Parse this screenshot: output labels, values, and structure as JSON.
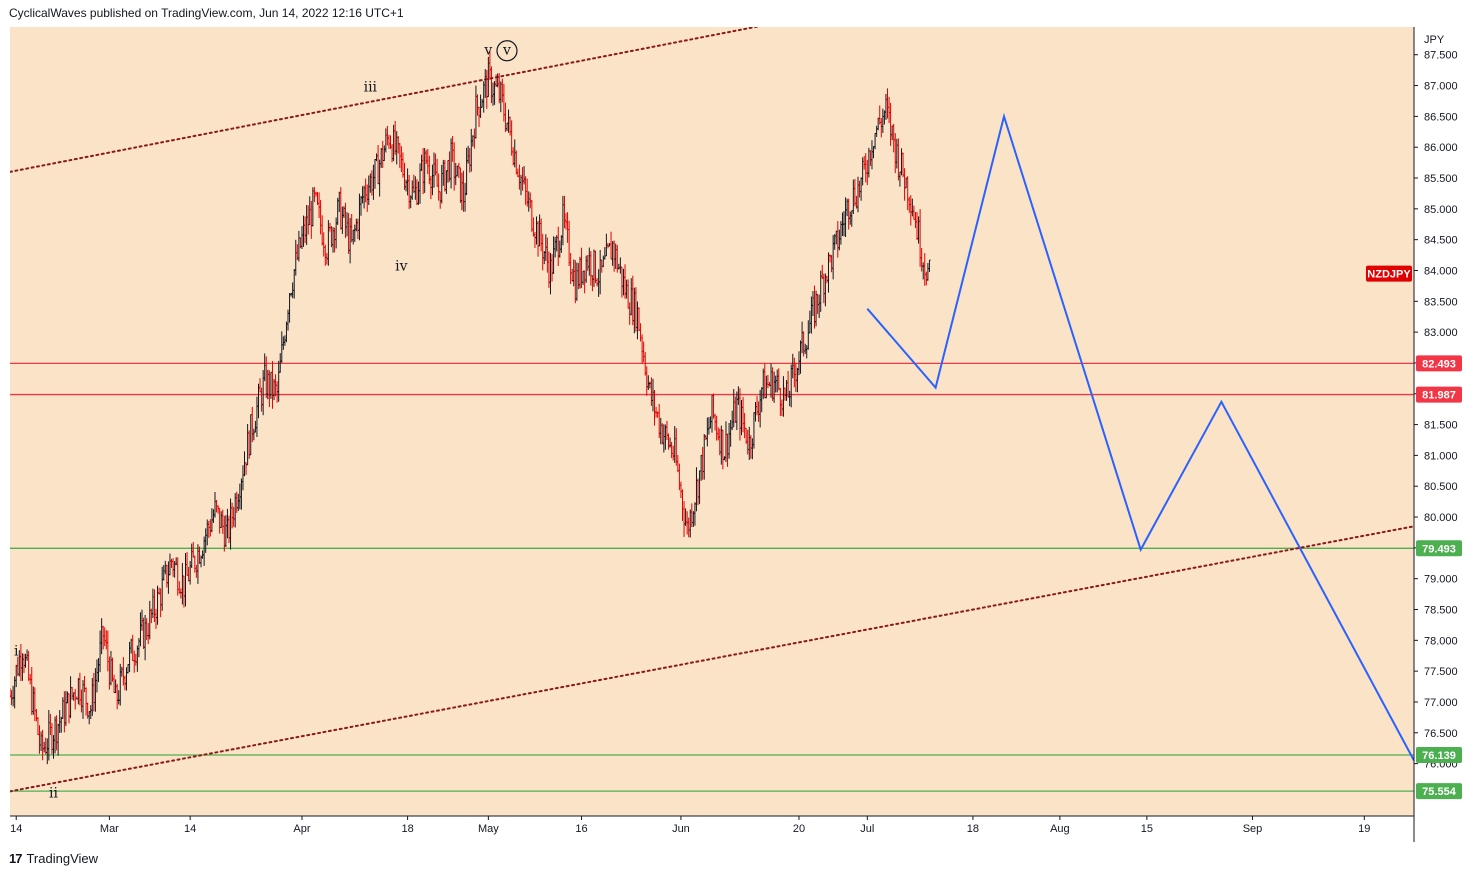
{
  "header": {
    "publisher": "CyclicalWaves published on TradingView.com, Jun 14, 2022 12:16 UTC+1"
  },
  "footer": {
    "logo": "17",
    "brand": "TradingView"
  },
  "colors": {
    "plot_bg": "#fbe3c8",
    "up_candle": "#131722",
    "down_candle": "#e00000",
    "resistance": "#f23645",
    "support": "#4caf50",
    "channel": "#8b1a1a",
    "projection": "#2962ff",
    "symbol_badge": "#e00000"
  },
  "chart_data": {
    "type": "candlestick",
    "symbol": "NZDJPY",
    "currency": "JPY",
    "y_range": [
      75.15,
      87.95
    ],
    "y_ticks": [
      76.0,
      76.5,
      77.0,
      77.5,
      78.0,
      78.5,
      79.0,
      79.5,
      80.0,
      80.5,
      81.0,
      81.5,
      82.0,
      82.5,
      83.0,
      83.5,
      84.0,
      84.5,
      85.0,
      85.5,
      86.0,
      86.5,
      87.0,
      87.5
    ],
    "x_range": [
      "2022-02-13",
      "2022-09-27"
    ],
    "x_ticks": [
      {
        "label": "14",
        "date": "2022-02-14"
      },
      {
        "label": "Mar",
        "date": "2022-03-01"
      },
      {
        "label": "14",
        "date": "2022-03-14"
      },
      {
        "label": "Apr",
        "date": "2022-04-01"
      },
      {
        "label": "18",
        "date": "2022-04-18"
      },
      {
        "label": "May",
        "date": "2022-05-01"
      },
      {
        "label": "16",
        "date": "2022-05-16"
      },
      {
        "label": "Jun",
        "date": "2022-06-01"
      },
      {
        "label": "20",
        "date": "2022-06-20"
      },
      {
        "label": "Jul",
        "date": "2022-07-01"
      },
      {
        "label": "18",
        "date": "2022-07-18"
      },
      {
        "label": "Aug",
        "date": "2022-08-01"
      },
      {
        "label": "15",
        "date": "2022-08-15"
      },
      {
        "label": "Sep",
        "date": "2022-09-01"
      },
      {
        "label": "19",
        "date": "2022-09-19"
      }
    ],
    "price_path": [
      [
        "2022-02-13",
        77.1
      ],
      [
        "2022-02-15",
        77.9
      ],
      [
        "2022-02-17",
        76.8
      ],
      [
        "2022-02-18",
        76.2
      ],
      [
        "2022-02-21",
        76.7
      ],
      [
        "2022-02-24",
        77.3
      ],
      [
        "2022-02-26",
        76.9
      ],
      [
        "2022-02-28",
        78.1
      ],
      [
        "2022-03-02",
        77.0
      ],
      [
        "2022-03-04",
        77.7
      ],
      [
        "2022-03-07",
        78.2
      ],
      [
        "2022-03-09",
        78.7
      ],
      [
        "2022-03-11",
        79.3
      ],
      [
        "2022-03-13",
        78.9
      ],
      [
        "2022-03-16",
        79.6
      ],
      [
        "2022-03-18",
        80.1
      ],
      [
        "2022-03-20",
        79.7
      ],
      [
        "2022-03-22",
        80.6
      ],
      [
        "2022-03-24",
        81.5
      ],
      [
        "2022-03-26",
        82.2
      ],
      [
        "2022-03-28",
        82.0
      ],
      [
        "2022-03-30",
        83.7
      ],
      [
        "2022-04-01",
        84.5
      ],
      [
        "2022-04-03",
        85.1
      ],
      [
        "2022-04-05",
        84.4
      ],
      [
        "2022-04-07",
        85.0
      ],
      [
        "2022-04-09",
        84.4
      ],
      [
        "2022-04-11",
        85.3
      ],
      [
        "2022-04-13",
        85.6
      ],
      [
        "2022-04-15",
        86.2
      ],
      [
        "2022-04-17",
        85.7
      ],
      [
        "2022-04-19",
        85.2
      ],
      [
        "2022-04-21",
        85.8
      ],
      [
        "2022-04-23",
        85.3
      ],
      [
        "2022-04-25",
        85.8
      ],
      [
        "2022-04-27",
        85.2
      ],
      [
        "2022-04-29",
        86.6
      ],
      [
        "2022-05-01",
        87.1
      ],
      [
        "2022-05-03",
        86.8
      ],
      [
        "2022-05-05",
        86.0
      ],
      [
        "2022-05-07",
        85.2
      ],
      [
        "2022-05-09",
        84.6
      ],
      [
        "2022-05-11",
        84.0
      ],
      [
        "2022-05-13",
        84.8
      ],
      [
        "2022-05-15",
        83.8
      ],
      [
        "2022-05-17",
        84.2
      ],
      [
        "2022-05-19",
        83.9
      ],
      [
        "2022-05-21",
        84.4
      ],
      [
        "2022-05-23",
        83.7
      ],
      [
        "2022-05-25",
        83.3
      ],
      [
        "2022-05-27",
        82.0
      ],
      [
        "2022-05-29",
        81.4
      ],
      [
        "2022-05-31",
        81.0
      ],
      [
        "2022-06-02",
        79.8
      ],
      [
        "2022-06-04",
        80.7
      ],
      [
        "2022-06-06",
        81.7
      ],
      [
        "2022-06-08",
        81.1
      ],
      [
        "2022-06-10",
        81.8
      ],
      [
        "2022-06-12",
        81.2
      ],
      [
        "2022-06-14",
        82.1
      ],
      [
        "2022-06-16",
        82.2
      ],
      [
        "2022-06-18",
        81.9
      ],
      [
        "2022-06-20",
        82.6
      ],
      [
        "2022-06-22",
        83.2
      ],
      [
        "2022-06-24",
        83.9
      ],
      [
        "2022-06-26",
        84.4
      ],
      [
        "2022-06-28",
        85.1
      ],
      [
        "2022-06-30",
        85.4
      ],
      [
        "2022-07-02",
        86.2
      ],
      [
        "2022-07-04",
        86.6
      ],
      [
        "2022-07-06",
        85.8
      ],
      [
        "2022-07-08",
        85.2
      ],
      [
        "2022-07-10",
        84.2
      ],
      [
        "2022-07-11",
        83.9
      ]
    ],
    "horizontal_levels": [
      {
        "value": 82.493,
        "label": "82.493",
        "kind": "resistance"
      },
      {
        "value": 81.987,
        "label": "81.987",
        "kind": "resistance"
      },
      {
        "value": 79.493,
        "label": "79.493",
        "kind": "support"
      },
      {
        "value": 76.139,
        "label": "76.139",
        "kind": "support"
      },
      {
        "value": 75.554,
        "label": "75.554",
        "kind": "support"
      }
    ],
    "channel_lines": [
      {
        "from": [
          "2022-02-13",
          85.6
        ],
        "to": [
          "2022-06-18",
          88.05
        ],
        "style": "dotted"
      },
      {
        "from": [
          "2022-02-13",
          75.55
        ],
        "to": [
          "2022-09-27",
          79.85
        ],
        "style": "dotted"
      }
    ],
    "projection_path": [
      [
        "2022-07-01",
        83.38
      ],
      [
        "2022-07-12",
        82.1
      ],
      [
        "2022-07-23",
        86.5
      ],
      [
        "2022-08-14",
        79.47
      ],
      [
        "2022-08-27",
        81.87
      ],
      [
        "2022-09-27",
        76.05
      ]
    ],
    "wave_labels": [
      {
        "text": "i",
        "date": "2022-02-14",
        "price": 77.75,
        "circled": false
      },
      {
        "text": "ii",
        "date": "2022-02-20",
        "price": 75.45,
        "circled": false
      },
      {
        "text": "iii",
        "date": "2022-04-12",
        "price": 86.9,
        "circled": false
      },
      {
        "text": "iv",
        "date": "2022-04-17",
        "price": 84.0,
        "circled": false
      },
      {
        "text": "v",
        "date": "2022-05-01",
        "price": 87.5,
        "circled": false
      },
      {
        "text": "v",
        "date": "2022-05-04",
        "price": 87.5,
        "circled": true
      }
    ],
    "grid": false,
    "legend": "none"
  }
}
